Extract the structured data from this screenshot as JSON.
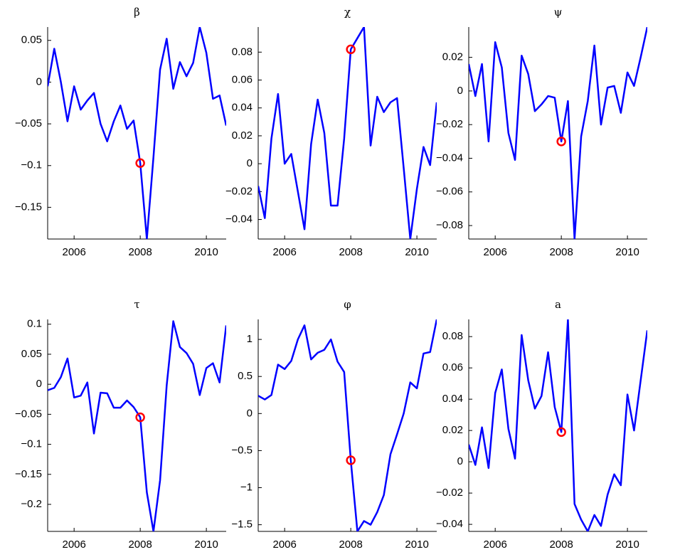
{
  "chart_data": [
    {
      "type": "line",
      "title": "β",
      "x": [
        2005.2,
        2005.4,
        2005.6,
        2005.8,
        2006,
        2006.2,
        2006.4,
        2006.6,
        2006.8,
        2007,
        2007.2,
        2007.4,
        2007.6,
        2007.8,
        2008,
        2008.2,
        2008.4,
        2008.6,
        2008.8,
        2009,
        2009.2,
        2009.4,
        2009.6,
        2009.8,
        2010,
        2010.2,
        2010.4,
        2010.6
      ],
      "series": [
        {
          "color": "#0000ff",
          "values": [
            -0.005,
            0.04,
            0.0,
            -0.047,
            -0.005,
            -0.033,
            -0.022,
            -0.013,
            -0.05,
            -0.071,
            -0.047,
            -0.028,
            -0.056,
            -0.046,
            -0.097,
            -0.188,
            -0.09,
            0.015,
            0.052,
            -0.008,
            0.024,
            0.007,
            0.023,
            0.066,
            0.035,
            -0.02,
            -0.016,
            -0.052
          ]
        }
      ],
      "highlight": {
        "x": 2008,
        "y": -0.097,
        "color": "#ff0000"
      },
      "xlim": [
        2005.2,
        2010.6
      ],
      "xticks": [
        2006,
        2008,
        2010
      ],
      "ylim": [
        -0.188,
        0.066
      ],
      "yticks": [
        0.05,
        0,
        {
          "value": -0.05,
          "label": "−0.05"
        },
        {
          "value": -0.1,
          "label": "−0.1"
        },
        {
          "value": -0.15,
          "label": "−0.15"
        }
      ]
    },
    {
      "type": "line",
      "title": "χ",
      "x": [
        2005.2,
        2005.4,
        2005.6,
        2005.8,
        2006,
        2006.2,
        2006.4,
        2006.6,
        2006.8,
        2007,
        2007.2,
        2007.4,
        2007.6,
        2007.8,
        2008,
        2008.2,
        2008.4,
        2008.6,
        2008.8,
        2009,
        2009.2,
        2009.4,
        2009.6,
        2009.8,
        2010,
        2010.2,
        2010.4,
        2010.6
      ],
      "series": [
        {
          "color": "#0000ff",
          "values": [
            -0.016,
            -0.039,
            0.018,
            0.05,
            0.0,
            0.007,
            -0.02,
            -0.047,
            0.014,
            0.046,
            0.022,
            -0.03,
            -0.03,
            0.018,
            0.082,
            0.09,
            0.098,
            0.013,
            0.048,
            0.037,
            0.044,
            0.047,
            -0.003,
            -0.054,
            -0.018,
            0.012,
            -0.001,
            0.044
          ]
        }
      ],
      "highlight": {
        "x": 2008,
        "y": 0.082,
        "color": "#ff0000"
      },
      "xlim": [
        2005.2,
        2010.6
      ],
      "xticks": [
        2006,
        2008,
        2010
      ],
      "ylim": [
        -0.054,
        0.098
      ],
      "yticks": [
        0.08,
        0.06,
        0.04,
        0.02,
        0,
        {
          "value": -0.02,
          "label": "−0.02"
        },
        {
          "value": -0.04,
          "label": "−0.04"
        }
      ]
    },
    {
      "type": "line",
      "title": "ψ",
      "x": [
        2005.2,
        2005.4,
        2005.6,
        2005.8,
        2006,
        2006.2,
        2006.4,
        2006.6,
        2006.8,
        2007,
        2007.2,
        2007.4,
        2007.6,
        2007.8,
        2008,
        2008.2,
        2008.4,
        2008.6,
        2008.8,
        2009,
        2009.2,
        2009.4,
        2009.6,
        2009.8,
        2010,
        2010.2,
        2010.4,
        2010.6
      ],
      "series": [
        {
          "color": "#0000ff",
          "values": [
            0.016,
            -0.003,
            0.016,
            -0.03,
            0.029,
            0.014,
            -0.025,
            -0.041,
            0.021,
            0.01,
            -0.012,
            -0.008,
            -0.003,
            -0.004,
            -0.03,
            -0.006,
            -0.088,
            -0.027,
            -0.006,
            0.027,
            -0.02,
            0.002,
            0.003,
            -0.013,
            0.011,
            0.003,
            0.02,
            0.038
          ]
        }
      ],
      "highlight": {
        "x": 2008,
        "y": -0.03,
        "color": "#ff0000"
      },
      "xlim": [
        2005.2,
        2010.6
      ],
      "xticks": [
        2006,
        2008,
        2010
      ],
      "ylim": [
        -0.088,
        0.038
      ],
      "yticks": [
        0.02,
        0,
        {
          "value": -0.02,
          "label": "−0.02"
        },
        {
          "value": -0.04,
          "label": "−0.04"
        },
        {
          "value": -0.06,
          "label": "−0.06"
        },
        {
          "value": -0.08,
          "label": "−0.08"
        }
      ]
    },
    {
      "type": "line",
      "title": "τ",
      "x": [
        2005.2,
        2005.4,
        2005.6,
        2005.8,
        2006,
        2006.2,
        2006.4,
        2006.6,
        2006.8,
        2007,
        2007.2,
        2007.4,
        2007.6,
        2007.8,
        2008,
        2008.2,
        2008.4,
        2008.6,
        2008.8,
        2009,
        2009.2,
        2009.4,
        2009.6,
        2009.8,
        2010,
        2010.2,
        2010.4,
        2010.6
      ],
      "series": [
        {
          "color": "#0000ff",
          "values": [
            -0.01,
            -0.006,
            0.012,
            0.043,
            -0.022,
            -0.019,
            0.003,
            -0.082,
            -0.014,
            -0.015,
            -0.039,
            -0.039,
            -0.027,
            -0.038,
            -0.055,
            -0.18,
            -0.245,
            -0.16,
            -0.002,
            0.105,
            0.062,
            0.052,
            0.034,
            -0.018,
            0.027,
            0.035,
            0.003,
            0.098
          ]
        }
      ],
      "highlight": {
        "x": 2008,
        "y": -0.055,
        "color": "#ff0000"
      },
      "xlim": [
        2005.2,
        2010.6
      ],
      "xticks": [
        2006,
        2008,
        2010
      ],
      "ylim": [
        -0.245,
        0.108
      ],
      "yticks": [
        0.1,
        0.05,
        0,
        {
          "value": -0.05,
          "label": "−0.05"
        },
        {
          "value": -0.1,
          "label": "−0.1"
        },
        {
          "value": -0.15,
          "label": "−0.15"
        },
        {
          "value": -0.2,
          "label": "−0.2"
        }
      ]
    },
    {
      "type": "line",
      "title": "φ",
      "x": [
        2005.2,
        2005.4,
        2005.6,
        2005.8,
        2006,
        2006.2,
        2006.4,
        2006.6,
        2006.8,
        2007,
        2007.2,
        2007.4,
        2007.6,
        2007.8,
        2008,
        2008.2,
        2008.4,
        2008.6,
        2008.8,
        2009,
        2009.2,
        2009.4,
        2009.6,
        2009.8,
        2010,
        2010.2,
        2010.4,
        2010.6
      ],
      "series": [
        {
          "color": "#0000ff",
          "values": [
            0.24,
            0.19,
            0.25,
            0.66,
            0.6,
            0.71,
            1.0,
            1.19,
            0.73,
            0.82,
            0.86,
            1.0,
            0.7,
            0.56,
            -0.63,
            -1.59,
            -1.45,
            -1.5,
            -1.33,
            -1.1,
            -0.55,
            -0.28,
            0.0,
            0.42,
            0.34,
            0.81,
            0.83,
            1.27
          ]
        }
      ],
      "highlight": {
        "x": 2008,
        "y": -0.63,
        "color": "#ff0000"
      },
      "xlim": [
        2005.2,
        2010.6
      ],
      "xticks": [
        2006,
        2008,
        2010
      ],
      "ylim": [
        -1.59,
        1.27
      ],
      "yticks": [
        1,
        0.5,
        0,
        {
          "value": -0.5,
          "label": "−0.5"
        },
        {
          "value": -1,
          "label": "−1"
        },
        {
          "value": -1.5,
          "label": "−1.5"
        }
      ]
    },
    {
      "type": "line",
      "title": "a",
      "x": [
        2005.2,
        2005.4,
        2005.6,
        2005.8,
        2006,
        2006.2,
        2006.4,
        2006.6,
        2006.8,
        2007,
        2007.2,
        2007.4,
        2007.6,
        2007.8,
        2008,
        2008.2,
        2008.4,
        2008.6,
        2008.8,
        2009,
        2009.2,
        2009.4,
        2009.6,
        2009.8,
        2010,
        2010.2,
        2010.4,
        2010.6
      ],
      "series": [
        {
          "color": "#0000ff",
          "values": [
            0.011,
            -0.002,
            0.022,
            -0.004,
            0.044,
            0.059,
            0.021,
            0.002,
            0.081,
            0.052,
            0.034,
            0.042,
            0.07,
            0.035,
            0.019,
            0.091,
            -0.027,
            -0.037,
            -0.0445,
            -0.034,
            -0.041,
            -0.021,
            -0.008,
            -0.015,
            0.043,
            0.02,
            0.052,
            0.084
          ]
        }
      ],
      "highlight": {
        "x": 2008,
        "y": 0.019,
        "color": "#ff0000"
      },
      "xlim": [
        2005.2,
        2010.6
      ],
      "xticks": [
        2006,
        2008,
        2010
      ],
      "ylim": [
        -0.0445,
        0.091
      ],
      "yticks": [
        0.08,
        0.06,
        0.04,
        0.02,
        0,
        {
          "value": -0.02,
          "label": "−0.02"
        },
        {
          "value": -0.04,
          "label": "−0.04"
        }
      ]
    }
  ]
}
